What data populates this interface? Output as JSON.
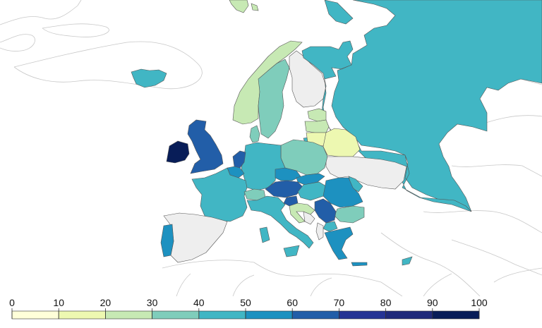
{
  "scale": {
    "ticks": [
      "0",
      "10",
      "20",
      "30",
      "40",
      "50",
      "60",
      "70",
      "80",
      "90",
      "100"
    ],
    "colors": [
      "#ffffd9",
      "#edf8b1",
      "#c7e9b4",
      "#7fcdbb",
      "#41b6c4",
      "#1d91c0",
      "#225ea8",
      "#253494",
      "#1f2a7a",
      "#081d58"
    ],
    "no_data_color": "#eeeeee"
  },
  "countries": [
    {
      "name": "Ireland",
      "value": 92
    },
    {
      "name": "United Kingdom",
      "value": 65
    },
    {
      "name": "Iceland",
      "value": 45
    },
    {
      "name": "Norway",
      "value": 26
    },
    {
      "name": "Sweden",
      "value": 35
    },
    {
      "name": "Finland",
      "value": null
    },
    {
      "name": "Denmark",
      "value": 38
    },
    {
      "name": "Netherlands",
      "value": 68
    },
    {
      "name": "Belgium",
      "value": 55
    },
    {
      "name": "France",
      "value": 48
    },
    {
      "name": "Germany",
      "value": 47
    },
    {
      "name": "Poland",
      "value": 37
    },
    {
      "name": "Czechia",
      "value": 57
    },
    {
      "name": "Austria",
      "value": 66
    },
    {
      "name": "Switzerland",
      "value": 38
    },
    {
      "name": "Slovakia",
      "value": 55
    },
    {
      "name": "Hungary",
      "value": 47
    },
    {
      "name": "Romania",
      "value": 58
    },
    {
      "name": "Bulgaria",
      "value": 35
    },
    {
      "name": "Serbia",
      "value": 60
    },
    {
      "name": "Croatia",
      "value": 28
    },
    {
      "name": "Slovenia",
      "value": 62
    },
    {
      "name": "Italy",
      "value": 47
    },
    {
      "name": "Spain",
      "value": null
    },
    {
      "name": "Portugal",
      "value": 55
    },
    {
      "name": "Greece",
      "value": 58
    },
    {
      "name": "North Macedonia",
      "value": 44
    },
    {
      "name": "Albania",
      "value": null
    },
    {
      "name": "Lithuania",
      "value": 16
    },
    {
      "name": "Latvia",
      "value": 25
    },
    {
      "name": "Estonia",
      "value": 22
    },
    {
      "name": "Belarus",
      "value": 15
    },
    {
      "name": "Ukraine",
      "value": null
    },
    {
      "name": "Moldova",
      "value": 40
    },
    {
      "name": "Russia",
      "value": 46
    },
    {
      "name": "Cyprus",
      "value": 47
    },
    {
      "name": "Svalbard",
      "value": 24
    }
  ]
}
